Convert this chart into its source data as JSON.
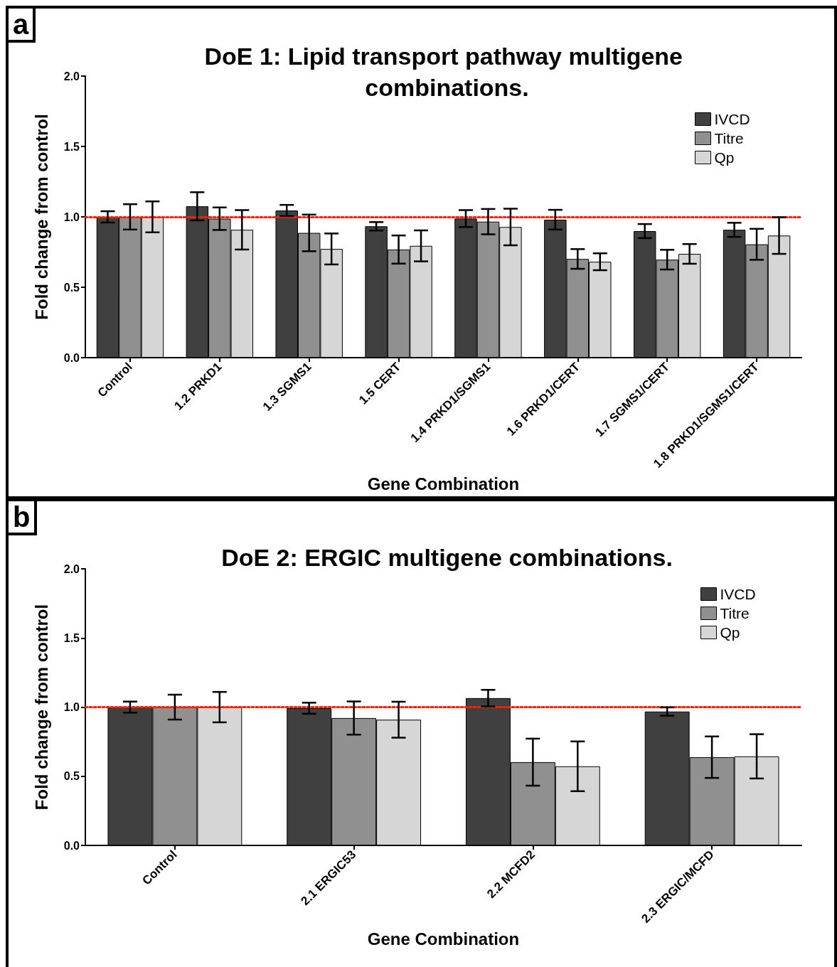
{
  "chart_data": [
    {
      "type": "bar",
      "title": "DoE 1: Lipid transport pathway multigene combinations.",
      "xlabel": "Gene Combination",
      "ylabel": "Fold change from control",
      "annotations": [
        "a"
      ],
      "categories": [
        "Control",
        "1.2 PRKD1",
        "1.3 SGMS1",
        "1.5 CERT",
        "1.4 PRKD1/SGMS1",
        "1.6 PRKD1/CERT",
        "1.7 SGMS1/CERT",
        "1.8 PRKD1/SGMS1/CERT"
      ],
      "series": [
        {
          "name": "IVCD",
          "color": "#404040",
          "values": [
            1.0,
            1.075,
            1.045,
            0.933,
            0.988,
            0.98,
            0.899,
            0.908
          ],
          "errors": [
            0.04,
            0.1,
            0.04,
            0.03,
            0.06,
            0.07,
            0.05,
            0.05
          ]
        },
        {
          "name": "Titre",
          "color": "#909090",
          "values": [
            1.0,
            0.987,
            0.886,
            0.768,
            0.966,
            0.701,
            0.696,
            0.805
          ],
          "errors": [
            0.09,
            0.08,
            0.13,
            0.1,
            0.09,
            0.07,
            0.07,
            0.11
          ]
        },
        {
          "name": "Qp",
          "color": "#d6d6d6",
          "values": [
            1.0,
            0.908,
            0.772,
            0.794,
            0.928,
            0.681,
            0.737,
            0.867
          ],
          "errors": [
            0.11,
            0.14,
            0.11,
            0.11,
            0.13,
            0.06,
            0.07,
            0.13
          ]
        }
      ],
      "ylim": [
        0,
        2
      ],
      "yticks": [
        {
          "value": 0,
          "label": "0.0"
        },
        {
          "value": 0.5,
          "label": "0.5"
        },
        {
          "value": 1,
          "label": "1.0"
        },
        {
          "value": 1.5,
          "label": "1.5"
        },
        {
          "value": 2,
          "label": "2.0"
        }
      ],
      "ref_lines": [
        {
          "axis": "y",
          "value": 1,
          "label": null,
          "color": "#ff2200",
          "line_style": "dotted"
        }
      ],
      "legend": "top right",
      "grid": false
    },
    {
      "type": "bar",
      "title": "DoE 2: ERGIC multigene combinations.",
      "xlabel": "Gene Combination",
      "ylabel": "Fold change from control",
      "annotations": [
        "b"
      ],
      "categories": [
        "Control",
        "2.1 ERGIC53",
        "2.2 MCFD2",
        "2.3 ERGIC/MCFD"
      ],
      "series": [
        {
          "name": "IVCD",
          "color": "#404040",
          "values": [
            1.0,
            0.992,
            1.065,
            0.968
          ],
          "errors": [
            0.04,
            0.04,
            0.06,
            0.03
          ]
        },
        {
          "name": "Titre",
          "color": "#909090",
          "values": [
            1.0,
            0.921,
            0.602,
            0.638
          ],
          "errors": [
            0.09,
            0.12,
            0.17,
            0.15
          ]
        },
        {
          "name": "Qp",
          "color": "#d6d6d6",
          "values": [
            1.0,
            0.909,
            0.572,
            0.644
          ],
          "errors": [
            0.11,
            0.13,
            0.18,
            0.16
          ]
        }
      ],
      "ylim": [
        0,
        2
      ],
      "yticks": [
        {
          "value": 0,
          "label": "0.0"
        },
        {
          "value": 0.5,
          "label": "0.5"
        },
        {
          "value": 1,
          "label": "1.0"
        },
        {
          "value": 1.5,
          "label": "1.5"
        },
        {
          "value": 2,
          "label": "2.0"
        }
      ],
      "ref_lines": [
        {
          "axis": "y",
          "value": 1,
          "label": null,
          "color": "#ff2200",
          "line_style": "dotted"
        }
      ],
      "legend": "top right",
      "grid": false
    }
  ]
}
